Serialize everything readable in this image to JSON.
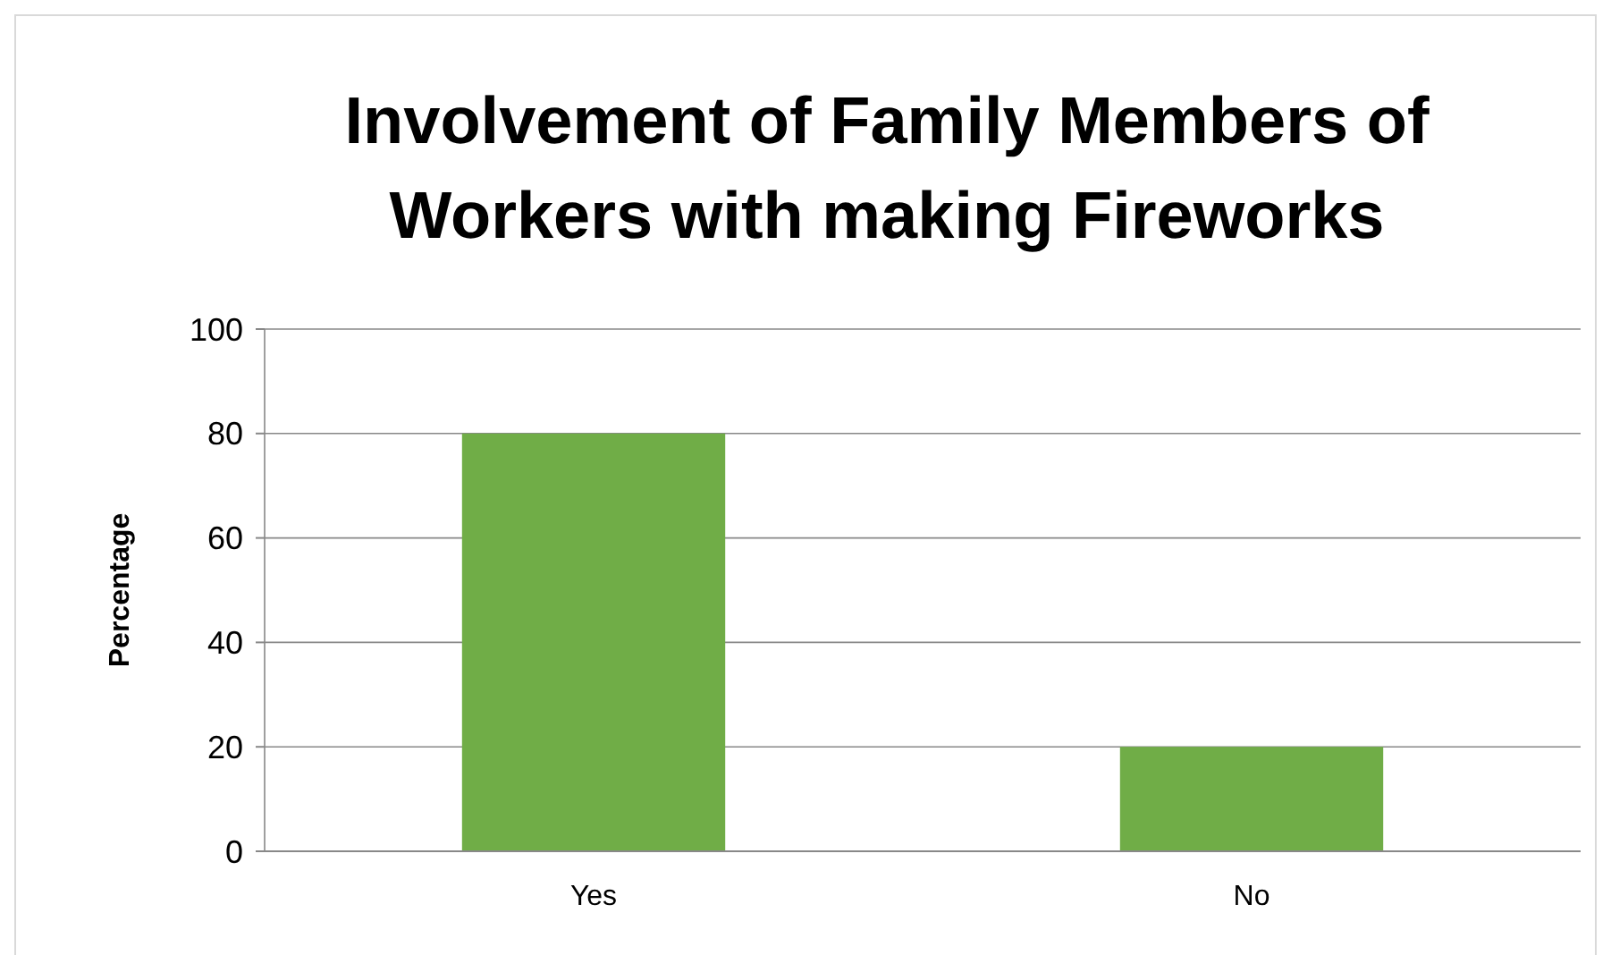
{
  "chart_data": {
    "type": "bar",
    "title": "Involvement of Family Members of Workers with making Fireworks",
    "ylabel": "Percentage",
    "categories": [
      "Yes",
      "No"
    ],
    "values": [
      80,
      20
    ],
    "color": "#70ad47",
    "ylim": [
      0,
      100
    ],
    "yticks": [
      0,
      20,
      40,
      60,
      80,
      100
    ],
    "grid": "y"
  }
}
